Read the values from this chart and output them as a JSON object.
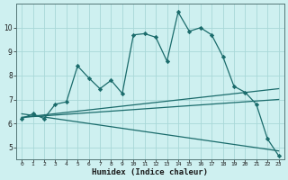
{
  "title": "",
  "xlabel": "Humidex (Indice chaleur)",
  "ylabel": "",
  "bg_color": "#cef0f0",
  "grid_color": "#a8d8d8",
  "line_color": "#1a6b6b",
  "xlim": [
    -0.5,
    23.5
  ],
  "ylim": [
    4.5,
    11.0
  ],
  "yticks": [
    5,
    6,
    7,
    8,
    9,
    10
  ],
  "xticks": [
    0,
    1,
    2,
    3,
    4,
    5,
    6,
    7,
    8,
    9,
    10,
    11,
    12,
    13,
    14,
    15,
    16,
    17,
    18,
    19,
    20,
    21,
    22,
    23
  ],
  "main_x": [
    0,
    1,
    2,
    3,
    4,
    5,
    6,
    7,
    8,
    9,
    10,
    11,
    12,
    13,
    14,
    15,
    16,
    17,
    18,
    19,
    20,
    21,
    22,
    23
  ],
  "main_y": [
    6.2,
    6.4,
    6.2,
    6.8,
    6.9,
    8.4,
    7.9,
    7.45,
    7.8,
    7.25,
    9.7,
    9.75,
    9.6,
    8.6,
    10.65,
    9.85,
    10.0,
    9.7,
    8.8,
    7.55,
    7.3,
    6.8,
    5.35,
    4.65
  ],
  "trend1_x": [
    0,
    23
  ],
  "trend1_y": [
    6.25,
    7.0
  ],
  "trend2_x": [
    0,
    23
  ],
  "trend2_y": [
    6.25,
    7.45
  ],
  "trend3_x": [
    0,
    23
  ],
  "trend3_y": [
    6.4,
    4.85
  ]
}
